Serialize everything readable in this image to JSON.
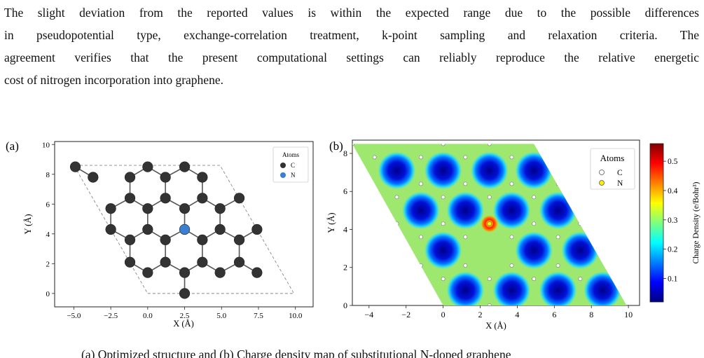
{
  "paragraph": {
    "lines": [
      "The slight deviation from the reported values is within the expected range due to the possible differences",
      "in pseudopotential type, exchange-correlation treatment, k-point sampling and relaxation criteria. The",
      "agreement verifies that the present computational settings can reliably reproduce the relative energetic",
      "cost of nitrogen incorporation into graphene."
    ]
  },
  "figure": {
    "panel_a": {
      "label": "(a)",
      "xlabel": "X (Å)",
      "ylabel": "Y (Å)",
      "legend_title": "Atoms",
      "legend_entries": [
        "C",
        "N"
      ],
      "colors": {
        "C": "#333333",
        "N": "#3a7fd0"
      },
      "xticks": [
        "-5.0",
        "-2.5",
        "0.0",
        "2.5",
        "5.0",
        "7.5",
        "10.0"
      ],
      "yticks": [
        "0",
        "2",
        "4",
        "6",
        "8",
        "10"
      ]
    },
    "panel_b": {
      "label": "(b)",
      "xlabel": "X (Å)",
      "ylabel": "Y (Å)",
      "legend_title": "Atoms",
      "legend_entries": [
        "C",
        "N"
      ],
      "xticks": [
        "-4",
        "-2",
        "0",
        "2",
        "4",
        "6",
        "8",
        "10"
      ],
      "yticks": [
        "0",
        "2",
        "4",
        "6",
        "8"
      ],
      "colorbar_label": "Charge Density (e/Bohr³)",
      "colorbar_ticks": [
        "0.1",
        "0.2",
        "0.3",
        "0.4",
        "0.5"
      ],
      "colormap": "jet"
    },
    "caption_fragment": "(a) Optimized structure and (b) Charge density map of substitutional N-doped graphene"
  },
  "chart_data": [
    {
      "type": "scatter",
      "title": "",
      "xlabel": "X (Å)",
      "ylabel": "Y (Å)",
      "xlim": [
        -6.3,
        11.2
      ],
      "ylim": [
        -0.9,
        10.2
      ],
      "grid": false,
      "legend": "top-right",
      "series": [
        {
          "name": "C",
          "points": [
            [
              -4.9,
              8.5
            ],
            [
              -3.7,
              7.8
            ],
            [
              -1.2,
              7.8
            ],
            [
              0.0,
              8.5
            ],
            [
              1.2,
              7.8
            ],
            [
              2.5,
              8.5
            ],
            [
              3.7,
              7.8
            ],
            [
              -1.2,
              6.4
            ],
            [
              1.2,
              6.4
            ],
            [
              3.7,
              6.4
            ],
            [
              6.2,
              6.4
            ],
            [
              -2.5,
              5.7
            ],
            [
              0.0,
              5.7
            ],
            [
              2.5,
              5.7
            ],
            [
              4.9,
              5.7
            ],
            [
              -2.5,
              4.3
            ],
            [
              0.0,
              4.3
            ],
            [
              4.9,
              4.3
            ],
            [
              7.4,
              4.3
            ],
            [
              -1.2,
              3.6
            ],
            [
              1.2,
              3.6
            ],
            [
              3.7,
              3.6
            ],
            [
              6.2,
              3.6
            ],
            [
              -1.2,
              2.1
            ],
            [
              1.2,
              2.1
            ],
            [
              3.7,
              2.1
            ],
            [
              6.2,
              2.1
            ],
            [
              0.0,
              1.4
            ],
            [
              2.5,
              1.4
            ],
            [
              4.9,
              1.4
            ],
            [
              7.4,
              1.4
            ],
            [
              2.5,
              0.0
            ]
          ]
        },
        {
          "name": "N",
          "points": [
            [
              2.5,
              4.3
            ]
          ]
        }
      ]
    },
    {
      "type": "heatmap",
      "title": "",
      "xlabel": "X (Å)",
      "ylabel": "Y (Å)",
      "xlim": [
        -4.9,
        10.6
      ],
      "ylim": [
        0,
        8.7
      ],
      "colorbar": {
        "label": "Charge Density (e/Bohr³)",
        "range": [
          0.02,
          0.56
        ],
        "ticks": [
          0.1,
          0.2,
          0.3,
          0.4,
          0.5
        ]
      },
      "legend": "top-right",
      "low_density_centers": [
        [
          -2.5,
          7.1
        ],
        [
          0.0,
          7.1
        ],
        [
          2.5,
          7.1
        ],
        [
          4.9,
          7.1
        ],
        [
          -1.2,
          5.0
        ],
        [
          1.2,
          5.0
        ],
        [
          3.7,
          5.0
        ],
        [
          6.2,
          5.0
        ],
        [
          0.0,
          2.9
        ],
        [
          4.9,
          2.9
        ],
        [
          7.4,
          2.9
        ],
        [
          1.2,
          0.8
        ],
        [
          3.7,
          0.8
        ],
        [
          6.2,
          0.8
        ],
        [
          8.6,
          0.8
        ]
      ],
      "nitrogen_site": [
        2.5,
        4.3
      ]
    }
  ]
}
